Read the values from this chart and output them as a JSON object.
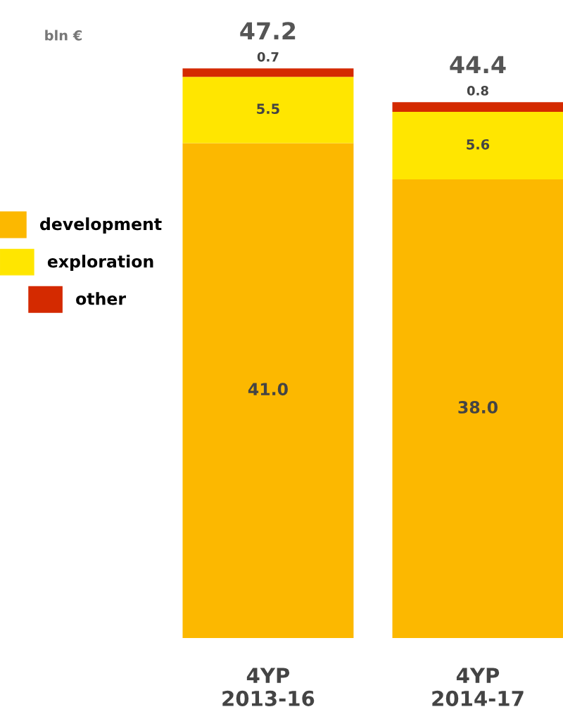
{
  "chart_data": {
    "type": "bar",
    "stacked": true,
    "annotations": [
      "bln €"
    ],
    "categories": [
      "4YP\n2013-16",
      "4YP\n2014-17"
    ],
    "series": [
      {
        "name": "development",
        "color": "#fcb800",
        "values": [
          41.0,
          38.0
        ],
        "value_labels": [
          "41.0",
          "38.0"
        ]
      },
      {
        "name": "exploration",
        "color": "#ffe600",
        "values": [
          5.5,
          5.6
        ],
        "value_labels": [
          "5.5",
          "5.6"
        ]
      },
      {
        "name": "other",
        "color": "#d42a00",
        "values": [
          0.7,
          0.8
        ],
        "value_labels": [
          "0.7",
          "0.8"
        ]
      }
    ],
    "totals": [
      "47.2",
      "44.4"
    ],
    "legend": "left",
    "grid": false
  }
}
